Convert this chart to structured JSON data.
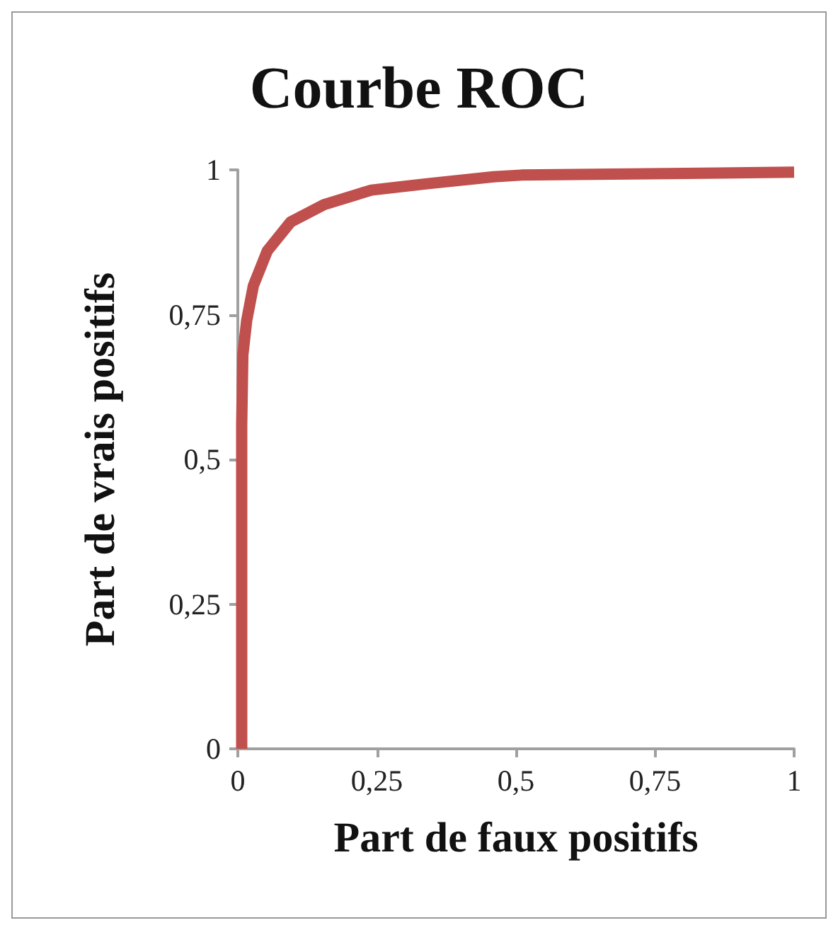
{
  "chart_data": {
    "type": "line",
    "title": "Courbe ROC",
    "xlabel": "Part de faux positifs",
    "ylabel": "Part de vrais positifs",
    "x": [
      0.007,
      0.007,
      0.009,
      0.016,
      0.028,
      0.053,
      0.095,
      0.155,
      0.24,
      0.34,
      0.46,
      0.51,
      1.0
    ],
    "series": [
      {
        "color": "#c0504d",
        "values": [
          0,
          0.56,
          0.68,
          0.74,
          0.8,
          0.86,
          0.91,
          0.94,
          0.965,
          0.976,
          0.988,
          0.991,
          0.996
        ]
      }
    ],
    "xlim": [
      0,
      1
    ],
    "ylim": [
      0,
      1
    ],
    "xticks": [
      0,
      {
        "value": 0.25,
        "label": "0,25"
      },
      {
        "value": 0.5,
        "label": "0,5"
      },
      {
        "value": 0.75,
        "label": "0,75"
      },
      1
    ],
    "yticks": [
      0,
      {
        "value": 0.25,
        "label": "0,25"
      },
      {
        "value": 0.5,
        "label": "0,5"
      },
      {
        "value": 0.75,
        "label": "0,75"
      },
      1
    ],
    "grid": false,
    "marker": "none",
    "line_style": "solid"
  }
}
